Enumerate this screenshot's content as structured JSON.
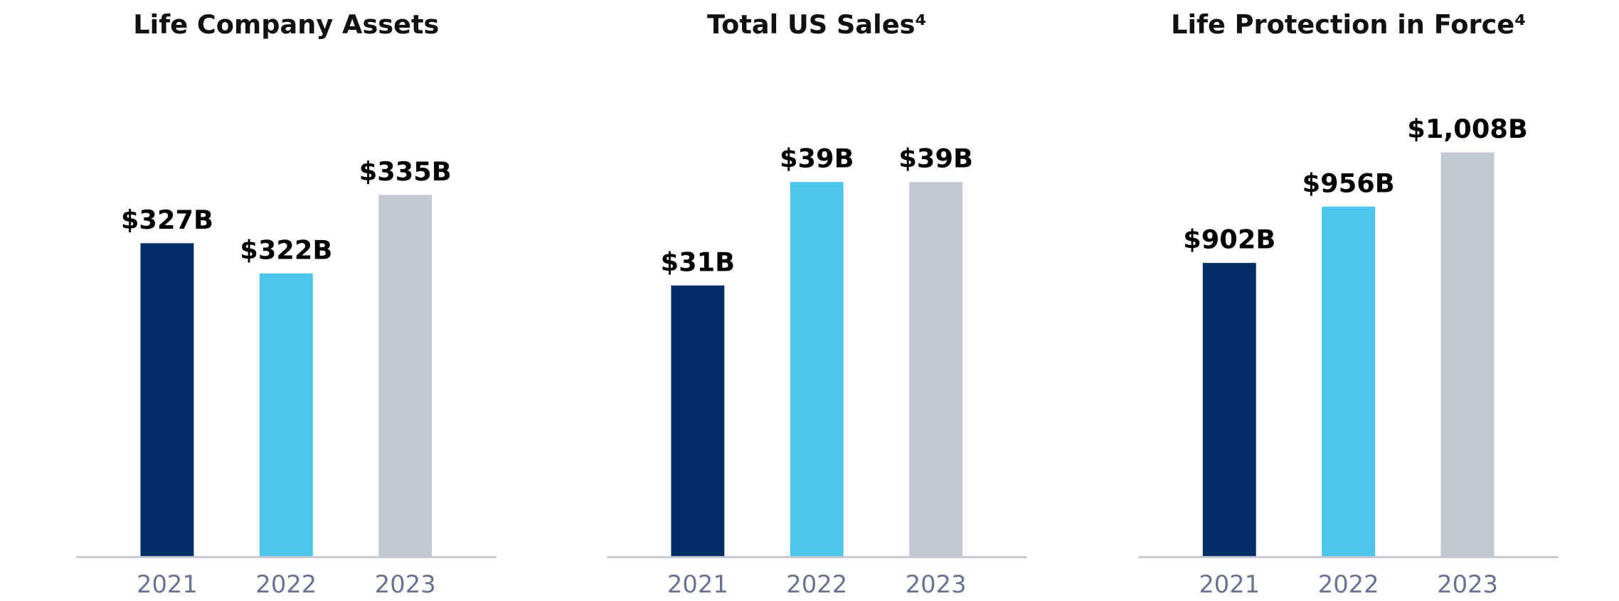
{
  "chart_data": [
    {
      "type": "bar",
      "title": "Life Company Assets",
      "categories": [
        "2021",
        "2022",
        "2023"
      ],
      "values": [
        327,
        322,
        335
      ],
      "value_labels": [
        "$327B",
        "$322B",
        "$335B"
      ],
      "colors": [
        "#002d66",
        "#4cc5ea",
        "#c3c9d3"
      ],
      "ylim": [
        275,
        350
      ]
    },
    {
      "type": "bar",
      "title": "Total US Sales⁴",
      "categories": [
        "2021",
        "2022",
        "2023"
      ],
      "values": [
        31,
        39,
        39
      ],
      "value_labels": [
        "$31B",
        "$39B",
        "$39B"
      ],
      "colors": [
        "#002d66",
        "#4cc5ea",
        "#c3c9d3"
      ],
      "ylim": [
        10,
        45
      ]
    },
    {
      "type": "bar",
      "title": "Life Protection in Force⁴",
      "categories": [
        "2021",
        "2022",
        "2023"
      ],
      "values": [
        902,
        956,
        1008
      ],
      "value_labels": [
        "$902B",
        "$956B",
        "$1,008B"
      ],
      "colors": [
        "#002d66",
        "#4cc5ea",
        "#c3c9d3"
      ],
      "ylim": [
        620,
        1054
      ]
    }
  ]
}
